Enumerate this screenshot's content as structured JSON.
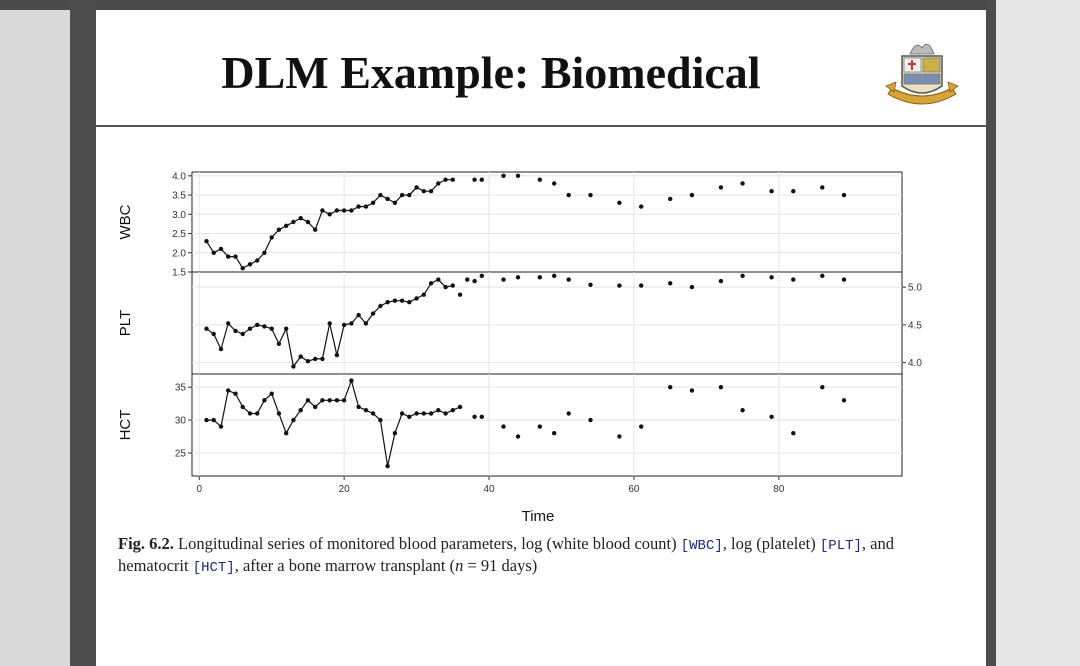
{
  "slide": {
    "title": "DLM Example: Biomedical",
    "caption": {
      "fig": "Fig. 6.2.",
      "text1": " Longitudinal series of monitored blood parameters, log (white blood count) ",
      "wbc": "[WBC]",
      "text2": ", log (platelet) ",
      "plt": "[PLT]",
      "text3": ", and hematocrit ",
      "hct": "[HCT]",
      "text4": ", after a bone marrow transplant (",
      "n": "n",
      "text5": " = 91 days)"
    }
  },
  "colors": {
    "frame": "#4d4d4d",
    "ink": "#111111",
    "caption_code": "#1a2a80"
  },
  "chart_data": {
    "type": "line",
    "xlabel": "Time",
    "x_ticks": [
      0,
      20,
      40,
      60,
      80
    ],
    "xlim": [
      -1,
      97
    ],
    "panels": [
      {
        "name": "WBC",
        "axis_side": "left",
        "ylim": [
          1.5,
          4.1
        ],
        "y_ticks": [
          1.5,
          2.0,
          2.5,
          3.0,
          3.5,
          4.0
        ],
        "y_tick_labels": [
          "1.5",
          "2.0",
          "2.5",
          "3.0",
          "3.5",
          "4.0"
        ],
        "line_until": 35,
        "points": [
          [
            1,
            2.3
          ],
          [
            2,
            2.0
          ],
          [
            3,
            2.1
          ],
          [
            4,
            1.9
          ],
          [
            5,
            1.9
          ],
          [
            6,
            1.6
          ],
          [
            7,
            1.7
          ],
          [
            8,
            1.8
          ],
          [
            9,
            2.0
          ],
          [
            10,
            2.4
          ],
          [
            11,
            2.6
          ],
          [
            12,
            2.7
          ],
          [
            13,
            2.8
          ],
          [
            14,
            2.9
          ],
          [
            15,
            2.8
          ],
          [
            16,
            2.6
          ],
          [
            17,
            3.1
          ],
          [
            18,
            3.0
          ],
          [
            19,
            3.1
          ],
          [
            20,
            3.1
          ],
          [
            21,
            3.1
          ],
          [
            22,
            3.2
          ],
          [
            23,
            3.2
          ],
          [
            24,
            3.3
          ],
          [
            25,
            3.5
          ],
          [
            26,
            3.4
          ],
          [
            27,
            3.3
          ],
          [
            28,
            3.5
          ],
          [
            29,
            3.5
          ],
          [
            30,
            3.7
          ],
          [
            31,
            3.6
          ],
          [
            32,
            3.6
          ],
          [
            33,
            3.8
          ],
          [
            34,
            3.9
          ],
          [
            35,
            3.9
          ],
          [
            38,
            3.9
          ],
          [
            39,
            3.9
          ],
          [
            42,
            4.0
          ],
          [
            44,
            4.0
          ],
          [
            47,
            3.9
          ],
          [
            49,
            3.8
          ],
          [
            51,
            3.5
          ],
          [
            54,
            3.5
          ],
          [
            58,
            3.3
          ],
          [
            61,
            3.2
          ],
          [
            65,
            3.4
          ],
          [
            68,
            3.5
          ],
          [
            72,
            3.7
          ],
          [
            75,
            3.8
          ],
          [
            79,
            3.6
          ],
          [
            82,
            3.6
          ],
          [
            86,
            3.7
          ],
          [
            89,
            3.5
          ]
        ]
      },
      {
        "name": "PLT",
        "axis_side": "right",
        "ylim": [
          3.85,
          5.2
        ],
        "y_ticks": [
          4.0,
          4.5,
          5.0
        ],
        "y_tick_labels": [
          "4.0",
          "4.5",
          "5.0"
        ],
        "line_until": 35,
        "points": [
          [
            1,
            4.45
          ],
          [
            2,
            4.38
          ],
          [
            3,
            4.18
          ],
          [
            4,
            4.52
          ],
          [
            5,
            4.42
          ],
          [
            6,
            4.38
          ],
          [
            7,
            4.45
          ],
          [
            8,
            4.5
          ],
          [
            9,
            4.48
          ],
          [
            10,
            4.45
          ],
          [
            11,
            4.25
          ],
          [
            12,
            4.45
          ],
          [
            13,
            3.95
          ],
          [
            14,
            4.08
          ],
          [
            15,
            4.02
          ],
          [
            16,
            4.05
          ],
          [
            17,
            4.05
          ],
          [
            18,
            4.52
          ],
          [
            19,
            4.1
          ],
          [
            20,
            4.5
          ],
          [
            21,
            4.52
          ],
          [
            22,
            4.63
          ],
          [
            23,
            4.52
          ],
          [
            24,
            4.65
          ],
          [
            25,
            4.75
          ],
          [
            26,
            4.8
          ],
          [
            27,
            4.82
          ],
          [
            28,
            4.82
          ],
          [
            29,
            4.8
          ],
          [
            30,
            4.85
          ],
          [
            31,
            4.9
          ],
          [
            32,
            5.05
          ],
          [
            33,
            5.1
          ],
          [
            34,
            5.0
          ],
          [
            35,
            5.02
          ],
          [
            36,
            4.9
          ],
          [
            37,
            5.1
          ],
          [
            38,
            5.08
          ],
          [
            39,
            5.15
          ],
          [
            42,
            5.1
          ],
          [
            44,
            5.13
          ],
          [
            47,
            5.13
          ],
          [
            49,
            5.15
          ],
          [
            51,
            5.1
          ],
          [
            54,
            5.03
          ],
          [
            58,
            5.02
          ],
          [
            61,
            5.02
          ],
          [
            65,
            5.05
          ],
          [
            68,
            5.0
          ],
          [
            72,
            5.08
          ],
          [
            75,
            5.15
          ],
          [
            79,
            5.13
          ],
          [
            82,
            5.1
          ],
          [
            86,
            5.15
          ],
          [
            89,
            5.1
          ]
        ]
      },
      {
        "name": "HCT",
        "axis_side": "left",
        "ylim": [
          21.5,
          37
        ],
        "y_ticks": [
          25,
          30,
          35
        ],
        "y_tick_labels": [
          "25",
          "30",
          "35"
        ],
        "line_until": 36,
        "points": [
          [
            1,
            30
          ],
          [
            2,
            30
          ],
          [
            3,
            29
          ],
          [
            4,
            34.5
          ],
          [
            5,
            34
          ],
          [
            6,
            32
          ],
          [
            7,
            31
          ],
          [
            8,
            31
          ],
          [
            9,
            33
          ],
          [
            10,
            34
          ],
          [
            11,
            31
          ],
          [
            12,
            28
          ],
          [
            13,
            30
          ],
          [
            14,
            31.5
          ],
          [
            15,
            33
          ],
          [
            16,
            32
          ],
          [
            17,
            33
          ],
          [
            18,
            33
          ],
          [
            19,
            33
          ],
          [
            20,
            33
          ],
          [
            21,
            36
          ],
          [
            22,
            32
          ],
          [
            23,
            31.5
          ],
          [
            24,
            31
          ],
          [
            25,
            30
          ],
          [
            26,
            23
          ],
          [
            27,
            28
          ],
          [
            28,
            31
          ],
          [
            29,
            30.5
          ],
          [
            30,
            31
          ],
          [
            31,
            31
          ],
          [
            32,
            31
          ],
          [
            33,
            31.5
          ],
          [
            34,
            31
          ],
          [
            35,
            31.5
          ],
          [
            36,
            32
          ],
          [
            38,
            30.5
          ],
          [
            39,
            30.5
          ],
          [
            42,
            29
          ],
          [
            44,
            27.5
          ],
          [
            47,
            29
          ],
          [
            49,
            28
          ],
          [
            51,
            31
          ],
          [
            54,
            30
          ],
          [
            58,
            27.5
          ],
          [
            61,
            29
          ],
          [
            65,
            35
          ],
          [
            68,
            34.5
          ],
          [
            72,
            35
          ],
          [
            75,
            31.5
          ],
          [
            79,
            30.5
          ],
          [
            82,
            28
          ],
          [
            86,
            35
          ],
          [
            89,
            33
          ]
        ]
      }
    ]
  }
}
